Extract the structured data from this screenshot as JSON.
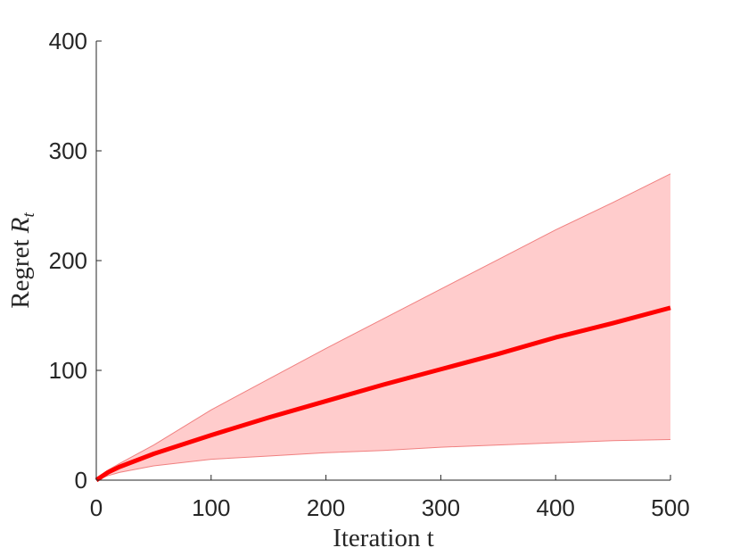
{
  "chart_data": {
    "type": "line",
    "xlabel": "Iteration t",
    "ylabel": "Regret",
    "ylabel_math": "R",
    "ylabel_sub": "t",
    "x": [
      0,
      10,
      20,
      50,
      100,
      150,
      200,
      250,
      300,
      350,
      400,
      450,
      500
    ],
    "series": [
      {
        "color": "#ff0000",
        "values": [
          0,
          7,
          12,
          24,
          41,
          57,
          72,
          87,
          101,
          115,
          130,
          143,
          157
        ]
      }
    ],
    "band": {
      "color": "#ffcccc",
      "edge_color": "#f08080",
      "upper": [
        0,
        9,
        15,
        32,
        64,
        92,
        120,
        147,
        174,
        201,
        228,
        253,
        279
      ],
      "lower": [
        0,
        4,
        7,
        13,
        19,
        22,
        25,
        27,
        30,
        32,
        34,
        36,
        37
      ]
    },
    "xlim": [
      0,
      500
    ],
    "xticks": [
      0,
      100,
      200,
      300,
      400,
      500
    ],
    "ylim": [
      0,
      400
    ],
    "yticks": [
      0,
      100,
      200,
      300,
      400
    ],
    "grid": false
  }
}
